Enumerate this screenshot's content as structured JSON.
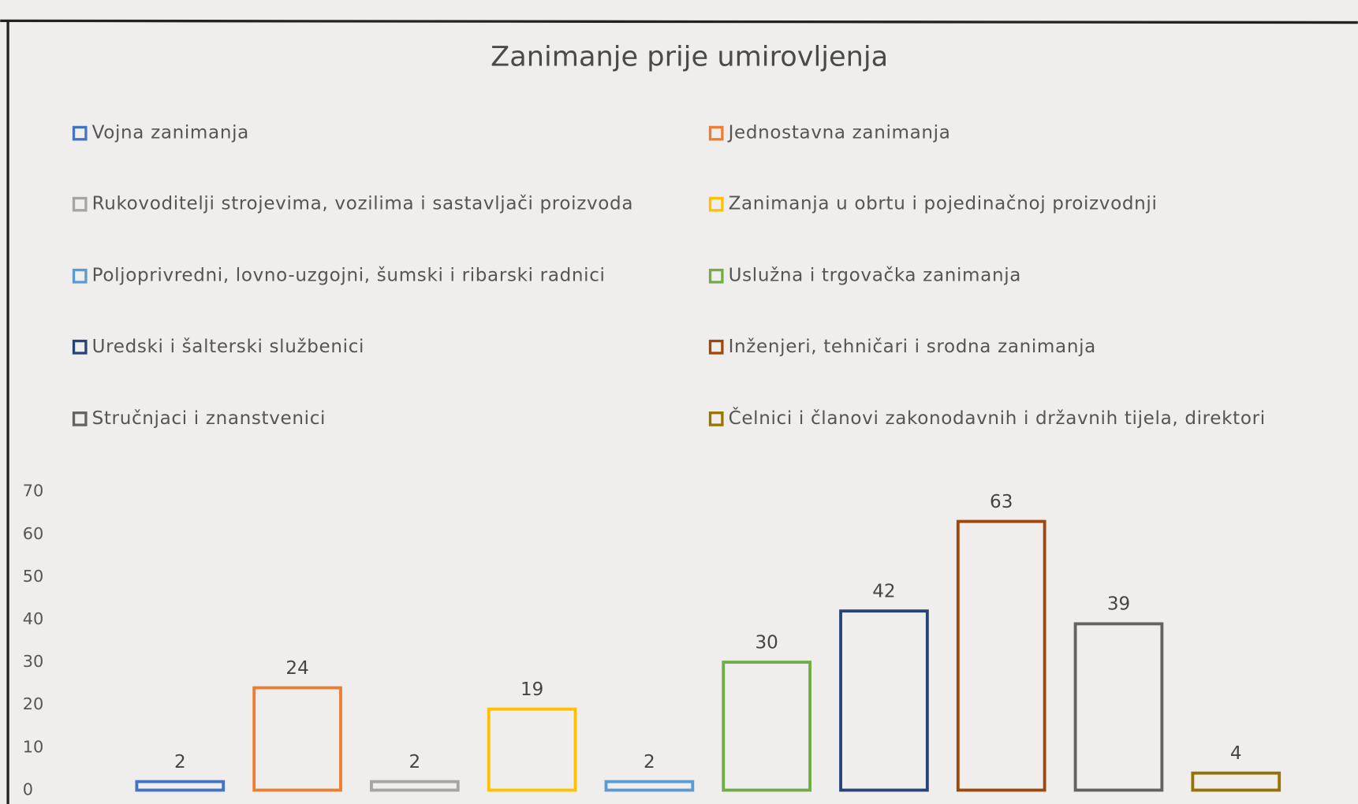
{
  "chart_data": {
    "type": "bar",
    "title": "Zanimanje prije umirovljenja",
    "categories": [
      "Vojna zanimanja",
      "Jednostavna zanimanja",
      "Rukovoditelji strojevima, vozilima i sastavljači proizvoda",
      "Zanimanja u obrtu i pojedinačnoj proizvodnji",
      "Poljoprivredni, lovno-uzgojni, šumski i ribarski radnici",
      "Uslužna i trgovačka zanimanja",
      "Uredski i šalterski službenici",
      "Inženjeri, tehničari i srodna zanimanja",
      "Stručnjaci i znanstvenici",
      "Čelnici i članovi zakonodavnih i državnih tijela, direktori"
    ],
    "values": [
      2,
      24,
      2,
      19,
      2,
      30,
      42,
      63,
      39,
      4
    ],
    "colors": [
      "#4472c4",
      "#ed7d31",
      "#a5a5a5",
      "#ffc000",
      "#5b9bd5",
      "#70ad47",
      "#264478",
      "#9e480e",
      "#636363",
      "#997300"
    ],
    "ylim": [
      0,
      70
    ],
    "yticks": [
      0,
      10,
      20,
      30,
      40,
      50,
      60,
      70
    ],
    "grid": false,
    "legend": "top"
  }
}
